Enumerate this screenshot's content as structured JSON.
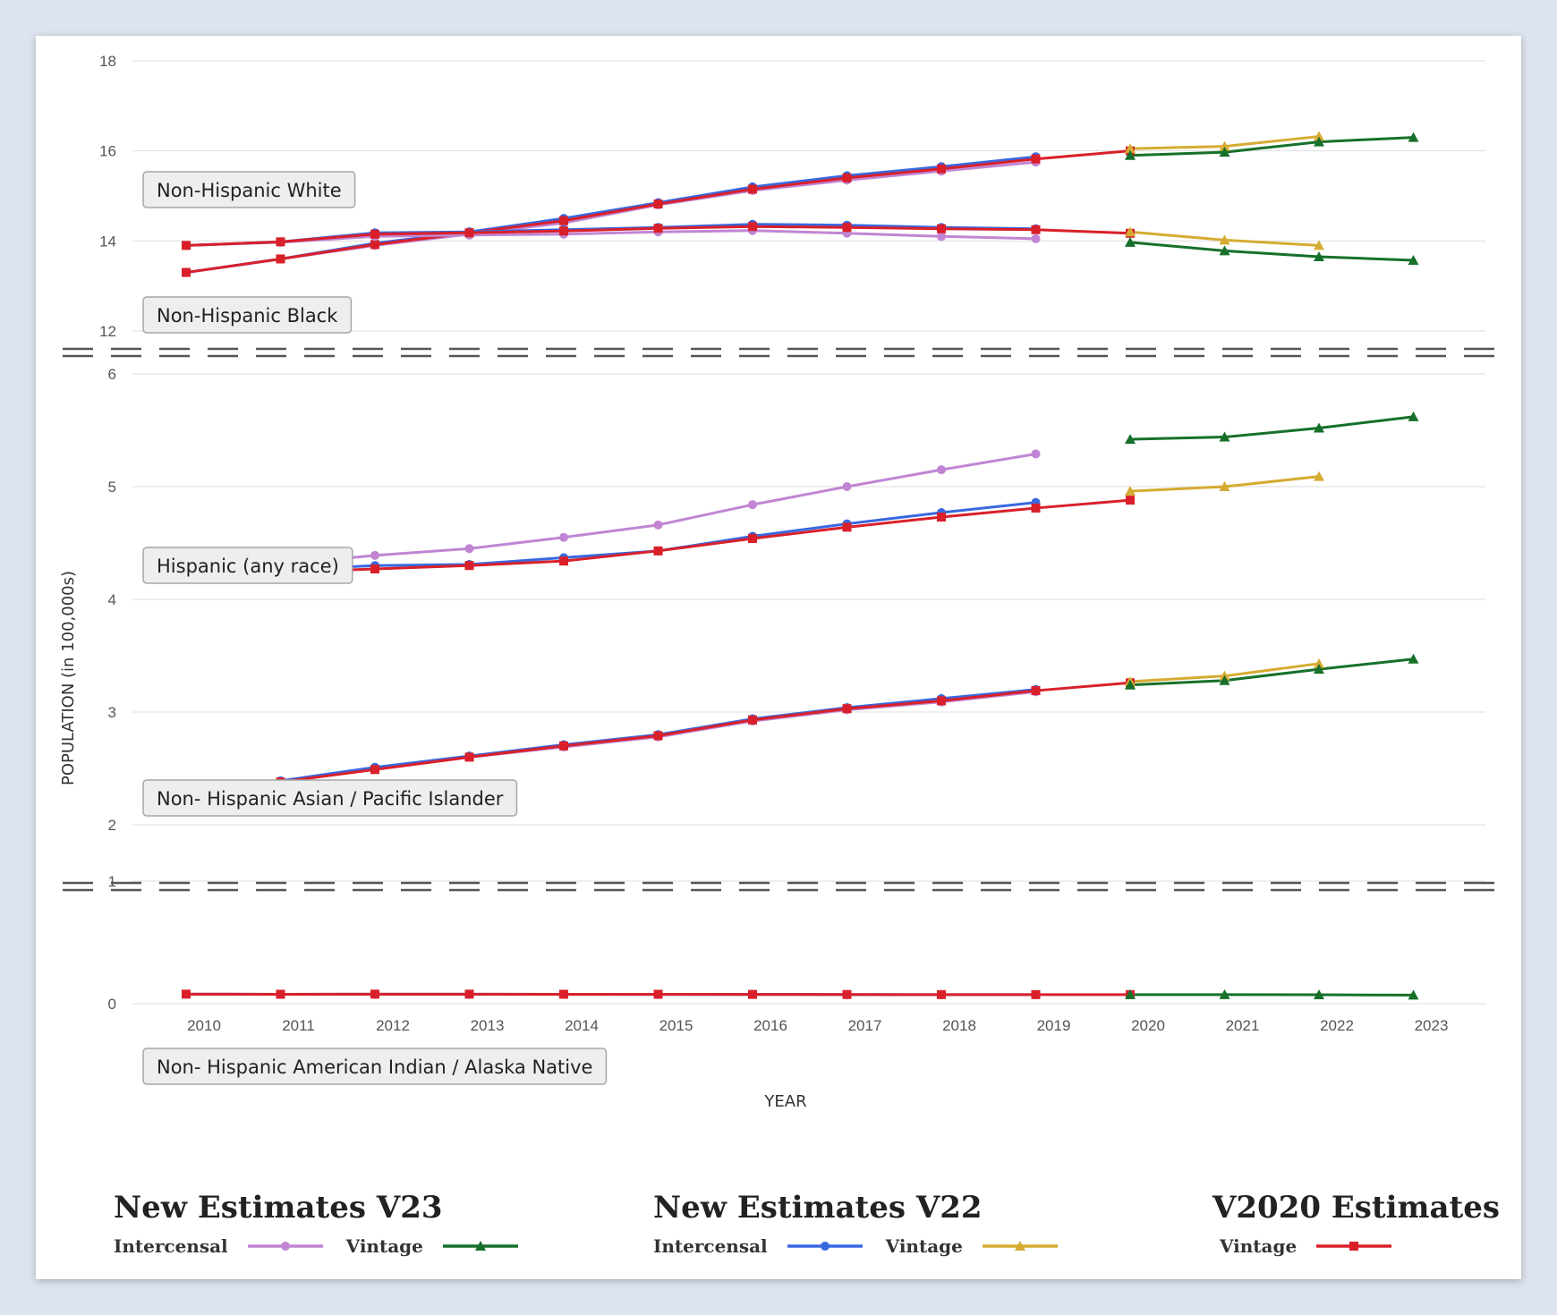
{
  "chart_data": {
    "type": "line",
    "xlabel": "YEAR",
    "ylabel": "POPULATION (in 100,000s)",
    "x": [
      2010,
      2011,
      2012,
      2013,
      2014,
      2015,
      2016,
      2017,
      2018,
      2019,
      2020,
      2021,
      2022,
      2023
    ],
    "panels": [
      {
        "ylim": [
          12,
          18
        ],
        "yticks": [
          "12",
          "14",
          "16",
          "18"
        ]
      },
      {
        "ylim": [
          2,
          6
        ],
        "yticks": [
          "2",
          "3",
          "4",
          "5",
          "6"
        ]
      },
      {
        "ylim": [
          0,
          1
        ],
        "yticks": [
          "0",
          "1"
        ]
      }
    ],
    "groups": [
      {
        "label": "Non-Hispanic White",
        "panel": 0,
        "series": {
          "v23_intercensal": [
            [
              2010,
              13.3
            ],
            [
              2011,
              13.6
            ],
            [
              2012,
              13.9
            ],
            [
              2013,
              14.15
            ],
            [
              2014,
              14.4
            ],
            [
              2015,
              14.8
            ],
            [
              2016,
              15.12
            ],
            [
              2017,
              15.35
            ],
            [
              2018,
              15.55
            ],
            [
              2019,
              15.75
            ]
          ],
          "v22_intercensal": [
            [
              2010,
              13.3
            ],
            [
              2011,
              13.6
            ],
            [
              2012,
              13.95
            ],
            [
              2013,
              14.2
            ],
            [
              2014,
              14.5
            ],
            [
              2015,
              14.85
            ],
            [
              2016,
              15.2
            ],
            [
              2017,
              15.45
            ],
            [
              2018,
              15.65
            ],
            [
              2019,
              15.87
            ]
          ],
          "v2020_vintage": [
            [
              2010,
              13.3
            ],
            [
              2011,
              13.6
            ],
            [
              2012,
              13.92
            ],
            [
              2013,
              14.18
            ],
            [
              2014,
              14.45
            ],
            [
              2015,
              14.82
            ],
            [
              2016,
              15.15
            ],
            [
              2017,
              15.4
            ],
            [
              2018,
              15.6
            ],
            [
              2019,
              15.82
            ],
            [
              2020,
              16.0
            ]
          ],
          "v23_vintage": [
            [
              2020,
              15.9
            ],
            [
              2021,
              15.97
            ],
            [
              2022,
              16.2
            ],
            [
              2023,
              16.3
            ]
          ],
          "v22_vintage": [
            [
              2020,
              16.05
            ],
            [
              2021,
              16.1
            ],
            [
              2022,
              16.32
            ]
          ]
        }
      },
      {
        "label": "Non-Hispanic Black",
        "panel": 0,
        "series": {
          "v23_intercensal": [
            [
              2010,
              13.9
            ],
            [
              2011,
              13.97
            ],
            [
              2012,
              14.1
            ],
            [
              2013,
              14.13
            ],
            [
              2014,
              14.15
            ],
            [
              2015,
              14.2
            ],
            [
              2016,
              14.23
            ],
            [
              2017,
              14.17
            ],
            [
              2018,
              14.1
            ],
            [
              2019,
              14.05
            ]
          ],
          "v22_intercensal": [
            [
              2010,
              13.9
            ],
            [
              2011,
              13.98
            ],
            [
              2012,
              14.18
            ],
            [
              2013,
              14.2
            ],
            [
              2014,
              14.25
            ],
            [
              2015,
              14.3
            ],
            [
              2016,
              14.37
            ],
            [
              2017,
              14.35
            ],
            [
              2018,
              14.3
            ],
            [
              2019,
              14.27
            ]
          ],
          "v2020_vintage": [
            [
              2010,
              13.9
            ],
            [
              2011,
              13.98
            ],
            [
              2012,
              14.15
            ],
            [
              2013,
              14.18
            ],
            [
              2014,
              14.22
            ],
            [
              2015,
              14.28
            ],
            [
              2016,
              14.32
            ],
            [
              2017,
              14.3
            ],
            [
              2018,
              14.27
            ],
            [
              2019,
              14.25
            ],
            [
              2020,
              14.17
            ]
          ],
          "v23_vintage": [
            [
              2020,
              13.97
            ],
            [
              2021,
              13.78
            ],
            [
              2022,
              13.65
            ],
            [
              2023,
              13.57
            ]
          ],
          "v22_vintage": [
            [
              2020,
              14.2
            ],
            [
              2021,
              14.02
            ],
            [
              2022,
              13.9
            ]
          ]
        }
      },
      {
        "label": "Hispanic (any race)",
        "panel": 1,
        "series": {
          "v23_intercensal": [
            [
              2010,
              4.24
            ],
            [
              2011,
              4.31
            ],
            [
              2012,
              4.39
            ],
            [
              2013,
              4.45
            ],
            [
              2014,
              4.55
            ],
            [
              2015,
              4.66
            ],
            [
              2016,
              4.84
            ],
            [
              2017,
              5.0
            ],
            [
              2018,
              5.15
            ],
            [
              2019,
              5.29
            ]
          ],
          "v22_intercensal": [
            [
              2010,
              4.23
            ],
            [
              2011,
              4.26
            ],
            [
              2012,
              4.3
            ],
            [
              2013,
              4.31
            ],
            [
              2014,
              4.37
            ],
            [
              2015,
              4.43
            ],
            [
              2016,
              4.56
            ],
            [
              2017,
              4.67
            ],
            [
              2018,
              4.77
            ],
            [
              2019,
              4.86
            ]
          ],
          "v2020_vintage": [
            [
              2010,
              4.22
            ],
            [
              2011,
              4.24
            ],
            [
              2012,
              4.27
            ],
            [
              2013,
              4.3
            ],
            [
              2014,
              4.34
            ],
            [
              2015,
              4.43
            ],
            [
              2016,
              4.54
            ],
            [
              2017,
              4.64
            ],
            [
              2018,
              4.73
            ],
            [
              2019,
              4.81
            ],
            [
              2020,
              4.88
            ]
          ],
          "v23_vintage": [
            [
              2020,
              5.42
            ],
            [
              2021,
              5.44
            ],
            [
              2022,
              5.52
            ],
            [
              2023,
              5.62
            ]
          ],
          "v22_vintage": [
            [
              2020,
              4.96
            ],
            [
              2021,
              5.0
            ],
            [
              2022,
              5.09
            ]
          ]
        }
      },
      {
        "label": "Non- Hispanic Asian / Pacific Islander",
        "panel": 1,
        "series": {
          "v23_intercensal": [
            [
              2010,
              2.3
            ],
            [
              2011,
              2.39
            ],
            [
              2012,
              2.5
            ],
            [
              2013,
              2.6
            ],
            [
              2014,
              2.69
            ],
            [
              2015,
              2.78
            ],
            [
              2016,
              2.92
            ],
            [
              2017,
              3.02
            ],
            [
              2018,
              3.09
            ],
            [
              2019,
              3.18
            ]
          ],
          "v22_intercensal": [
            [
              2010,
              2.3
            ],
            [
              2011,
              2.39
            ],
            [
              2012,
              2.51
            ],
            [
              2013,
              2.61
            ],
            [
              2014,
              2.71
            ],
            [
              2015,
              2.8
            ],
            [
              2016,
              2.94
            ],
            [
              2017,
              3.04
            ],
            [
              2018,
              3.12
            ],
            [
              2019,
              3.2
            ]
          ],
          "v2020_vintage": [
            [
              2010,
              2.29
            ],
            [
              2011,
              2.38
            ],
            [
              2012,
              2.49
            ],
            [
              2013,
              2.6
            ],
            [
              2014,
              2.7
            ],
            [
              2015,
              2.79
            ],
            [
              2016,
              2.93
            ],
            [
              2017,
              3.03
            ],
            [
              2018,
              3.1
            ],
            [
              2019,
              3.19
            ],
            [
              2020,
              3.26
            ]
          ],
          "v23_vintage": [
            [
              2020,
              3.24
            ],
            [
              2021,
              3.28
            ],
            [
              2022,
              3.38
            ],
            [
              2023,
              3.47
            ]
          ],
          "v22_vintage": [
            [
              2020,
              3.27
            ],
            [
              2021,
              3.32
            ],
            [
              2022,
              3.43
            ]
          ]
        }
      },
      {
        "label": "Non- Hispanic American Indian / Alaska Native",
        "panel": 2,
        "series": {
          "v23_intercensal": [
            [
              2010,
              0.078
            ],
            [
              2011,
              0.077
            ],
            [
              2012,
              0.077
            ],
            [
              2013,
              0.077
            ],
            [
              2014,
              0.076
            ],
            [
              2015,
              0.075
            ],
            [
              2016,
              0.075
            ],
            [
              2017,
              0.074
            ],
            [
              2018,
              0.073
            ],
            [
              2019,
              0.073
            ]
          ],
          "v22_intercensal": [
            [
              2010,
              0.078
            ],
            [
              2011,
              0.077
            ],
            [
              2012,
              0.078
            ],
            [
              2013,
              0.078
            ],
            [
              2014,
              0.077
            ],
            [
              2015,
              0.076
            ],
            [
              2016,
              0.076
            ],
            [
              2017,
              0.075
            ],
            [
              2018,
              0.074
            ],
            [
              2019,
              0.074
            ]
          ],
          "v2020_vintage": [
            [
              2010,
              0.078
            ],
            [
              2011,
              0.077
            ],
            [
              2012,
              0.078
            ],
            [
              2013,
              0.078
            ],
            [
              2014,
              0.077
            ],
            [
              2015,
              0.077
            ],
            [
              2016,
              0.076
            ],
            [
              2017,
              0.075
            ],
            [
              2018,
              0.074
            ],
            [
              2019,
              0.074
            ],
            [
              2020,
              0.074
            ]
          ],
          "v23_vintage": [
            [
              2020,
              0.074
            ],
            [
              2021,
              0.074
            ],
            [
              2022,
              0.073
            ],
            [
              2023,
              0.07
            ]
          ],
          "v22_vintage": []
        }
      }
    ],
    "series_styles": {
      "v23_intercensal": {
        "color": "#c185d3",
        "marker": "circle"
      },
      "v23_vintage": {
        "color": "#16702a",
        "marker": "triangle"
      },
      "v22_intercensal": {
        "color": "#3868e0",
        "marker": "circle"
      },
      "v22_vintage": {
        "color": "#d6ab32",
        "marker": "triangle"
      },
      "v2020_vintage": {
        "color": "#d9202a",
        "marker": "square"
      }
    },
    "draw_order": [
      "v23_intercensal",
      "v22_intercensal",
      "v2020_vintage",
      "v22_vintage",
      "v23_vintage"
    ],
    "legend_placement": "bottom"
  },
  "legend": {
    "groups": [
      {
        "title": "New Estimates V23",
        "items": [
          {
            "label": "Intercensal",
            "series": "v23_intercensal"
          },
          {
            "label": "Vintage",
            "series": "v23_vintage"
          }
        ]
      },
      {
        "title": "New Estimates V22",
        "items": [
          {
            "label": "Intercensal",
            "series": "v22_intercensal"
          },
          {
            "label": "Vintage",
            "series": "v22_vintage"
          }
        ]
      },
      {
        "title": "V2020 Estimates",
        "items": [
          {
            "label": "Vintage",
            "series": "v2020_vintage"
          }
        ]
      }
    ]
  }
}
